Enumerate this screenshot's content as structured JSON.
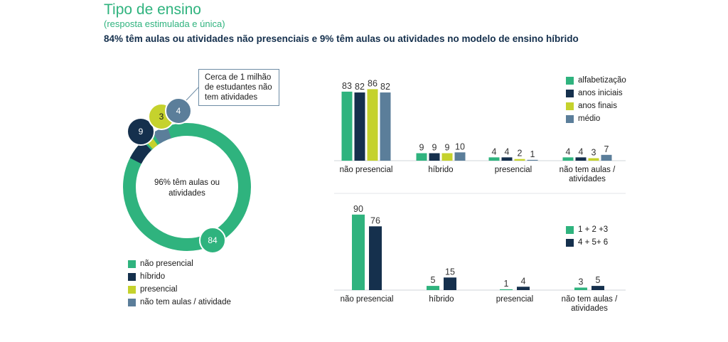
{
  "header": {
    "title": "Tipo de ensino",
    "subtitle": "(resposta estimulada e única)",
    "headline": "84% têm aulas ou atividades não presenciais e 9% têm aulas ou atividades no modelo de ensino híbrido"
  },
  "colors": {
    "nao_presencial": "#2fb37e",
    "hibrido": "#15304d",
    "presencial": "#c5d22d",
    "nao_tem": "#5b7e9a",
    "grid": "#d0d5d8"
  },
  "donut": {
    "center_label": "96% têm aulas ou atividades",
    "callout": "Cerca de 1 milhão de estudantes não tem atividades"
  },
  "donut_legend": [
    "não presencial",
    "híbrido",
    "presencial",
    "não tem aulas / atividade"
  ],
  "chart_data": [
    {
      "type": "pie",
      "categories": [
        "não presencial",
        "híbrido",
        "presencial",
        "não tem aulas / atividade"
      ],
      "values": [
        84,
        9,
        3,
        4
      ]
    },
    {
      "type": "bar",
      "categories": [
        "não presencial",
        "híbrido",
        "presencial",
        "não tem aulas / atividades"
      ],
      "series": [
        {
          "name": "alfabetização",
          "values": [
            83,
            9,
            4,
            4
          ]
        },
        {
          "name": "anos iniciais",
          "values": [
            82,
            9,
            4,
            4
          ]
        },
        {
          "name": "anos finais",
          "values": [
            86,
            9,
            2,
            3
          ]
        },
        {
          "name": "médio",
          "values": [
            82,
            10,
            1,
            7
          ]
        }
      ]
    },
    {
      "type": "bar",
      "categories": [
        "não presencial",
        "híbrido",
        "presencial",
        "não tem aulas / atividades"
      ],
      "series": [
        {
          "name": "1 + 2 +3",
          "values": [
            90,
            5,
            1,
            3
          ]
        },
        {
          "name": "4 + 5+ 6",
          "values": [
            76,
            15,
            4,
            5
          ]
        }
      ]
    }
  ]
}
